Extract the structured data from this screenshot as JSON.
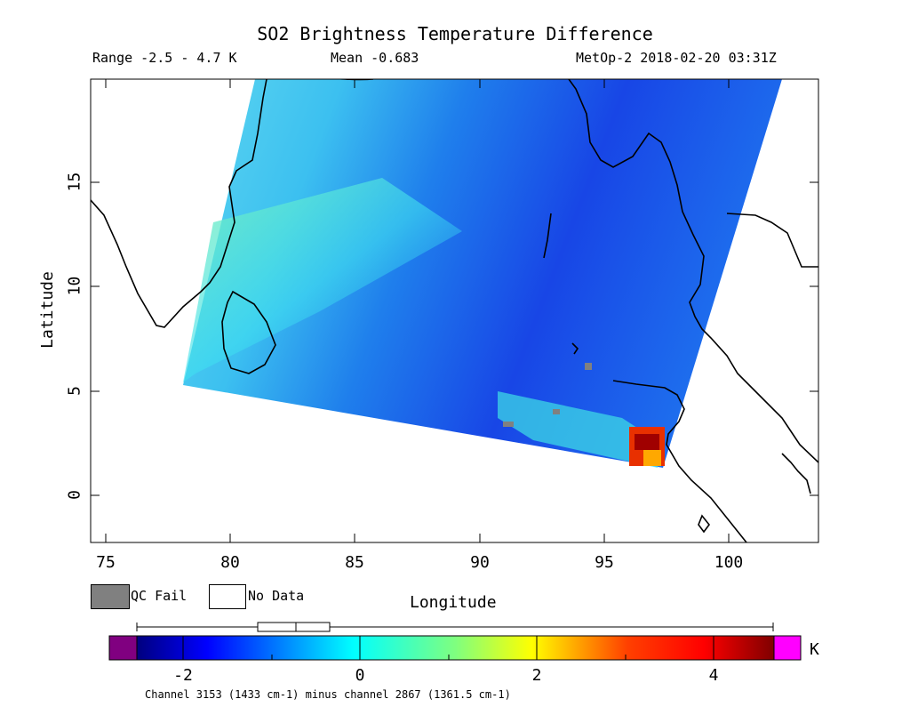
{
  "title": "SO2 Brightness Temperature Difference",
  "info": {
    "range": "Range -2.5 - 4.7 K",
    "mean": "Mean -0.683",
    "satellite": "MetOp-2 2018-02-20 03:31Z"
  },
  "axes": {
    "xlabel": "Longitude",
    "ylabel": "Latitude",
    "xticks": [
      "75",
      "80",
      "85",
      "90",
      "95",
      "100"
    ],
    "yticks": [
      "0",
      "5",
      "10",
      "15"
    ],
    "xlim": [
      74.4,
      103.6
    ],
    "ylim": [
      -2.3,
      19.8
    ]
  },
  "legend": {
    "qc_fail": "QC Fail",
    "no_data": "No Data"
  },
  "colorbar": {
    "ticks": [
      "-2",
      "0",
      "2",
      "4"
    ],
    "unit": "K",
    "range": [
      -2.5,
      4.7
    ],
    "below_color": "#800080",
    "above_color": "#ff00ff",
    "box_plot": {
      "min": -2.5,
      "q1": -1.15,
      "median": -0.7,
      "q3": -0.35,
      "max": 4.7
    }
  },
  "footnote": "Channel 3153 (1433 cm-1) minus channel 2867 (1361.5 cm-1)",
  "colors": {
    "qc_fail": "#808080",
    "no_data": "#ffffff",
    "coastline": "#000000"
  }
}
